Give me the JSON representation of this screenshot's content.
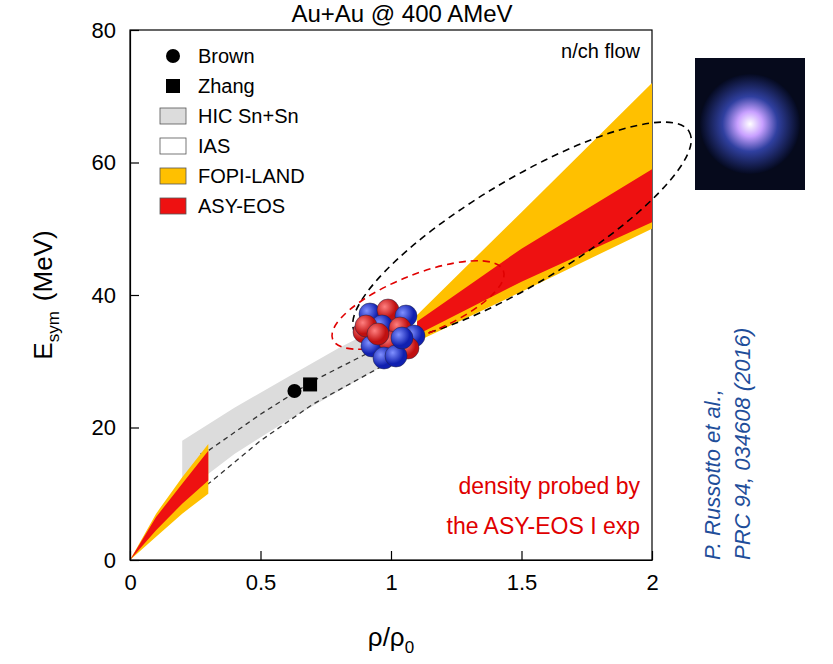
{
  "chart_data": {
    "type": "area",
    "title": "Au+Au @ 400 AMeV",
    "xlabel": {
      "text": "ρ/ρ",
      "subscript": "0"
    },
    "ylabel": {
      "text": "E",
      "subscript": "sym",
      "unit": "(MeV)"
    },
    "xlim": [
      0,
      2
    ],
    "xticks": [
      0,
      0.5,
      1,
      1.5,
      2
    ],
    "ylim": [
      0,
      80
    ],
    "yticks": [
      0,
      20,
      40,
      60,
      80
    ],
    "legend": "upper left",
    "annotations": [
      "n/ch flow",
      "density probed by",
      "the ASY-EOS I exp",
      "P. Russotto et al.,",
      "PRC 94, 034608 (2016)"
    ],
    "series": [
      {
        "name": "Brown",
        "type": "scatter",
        "marker": "circle",
        "color": "#000000",
        "x": [
          0.63
        ],
        "values": [
          25.5
        ]
      },
      {
        "name": "Zhang",
        "type": "scatter",
        "marker": "square",
        "color": "#000000",
        "x": [
          0.69
        ],
        "values": [
          26.5
        ]
      },
      {
        "name": "HIC Sn+Sn",
        "type": "area",
        "color": "#dcdcdc",
        "x": [
          0.2,
          0.4,
          0.6,
          0.8,
          1.0,
          1.05
        ],
        "lower": [
          10,
          16,
          21,
          25.5,
          30,
          31
        ],
        "upper": [
          18,
          23,
          27.5,
          32,
          36,
          37
        ]
      },
      {
        "name": "IAS",
        "type": "area",
        "color": "#ffffff",
        "line_style": "dashed",
        "x": [
          0.27,
          0.3,
          0.5,
          0.7,
          1.0
        ],
        "lower": [
          11,
          11.5,
          18,
          23.5,
          30
        ],
        "upper": [
          16,
          16.5,
          22,
          27,
          33
        ]
      },
      {
        "name": "FOPI-LAND",
        "type": "area",
        "color": "#ffc000",
        "x": [
          0,
          0.1,
          0.2,
          0.3,
          0.6,
          1.1,
          1.5,
          2
        ],
        "lower": [
          0,
          3.5,
          7,
          10,
          null,
          33,
          40.5,
          50
        ],
        "upper": [
          0,
          7,
          12.5,
          17.5,
          null,
          37,
          52.5,
          72
        ]
      },
      {
        "name": "ASY-EOS",
        "type": "area",
        "color": "#ee1111",
        "x": [
          0,
          0.1,
          0.2,
          0.3,
          0.6,
          1.1,
          1.5,
          2
        ],
        "lower": [
          0,
          4.5,
          8.5,
          12,
          null,
          34,
          42,
          51
        ],
        "upper": [
          0,
          6.5,
          11.5,
          16.5,
          null,
          36,
          47,
          59
        ]
      }
    ]
  }
}
